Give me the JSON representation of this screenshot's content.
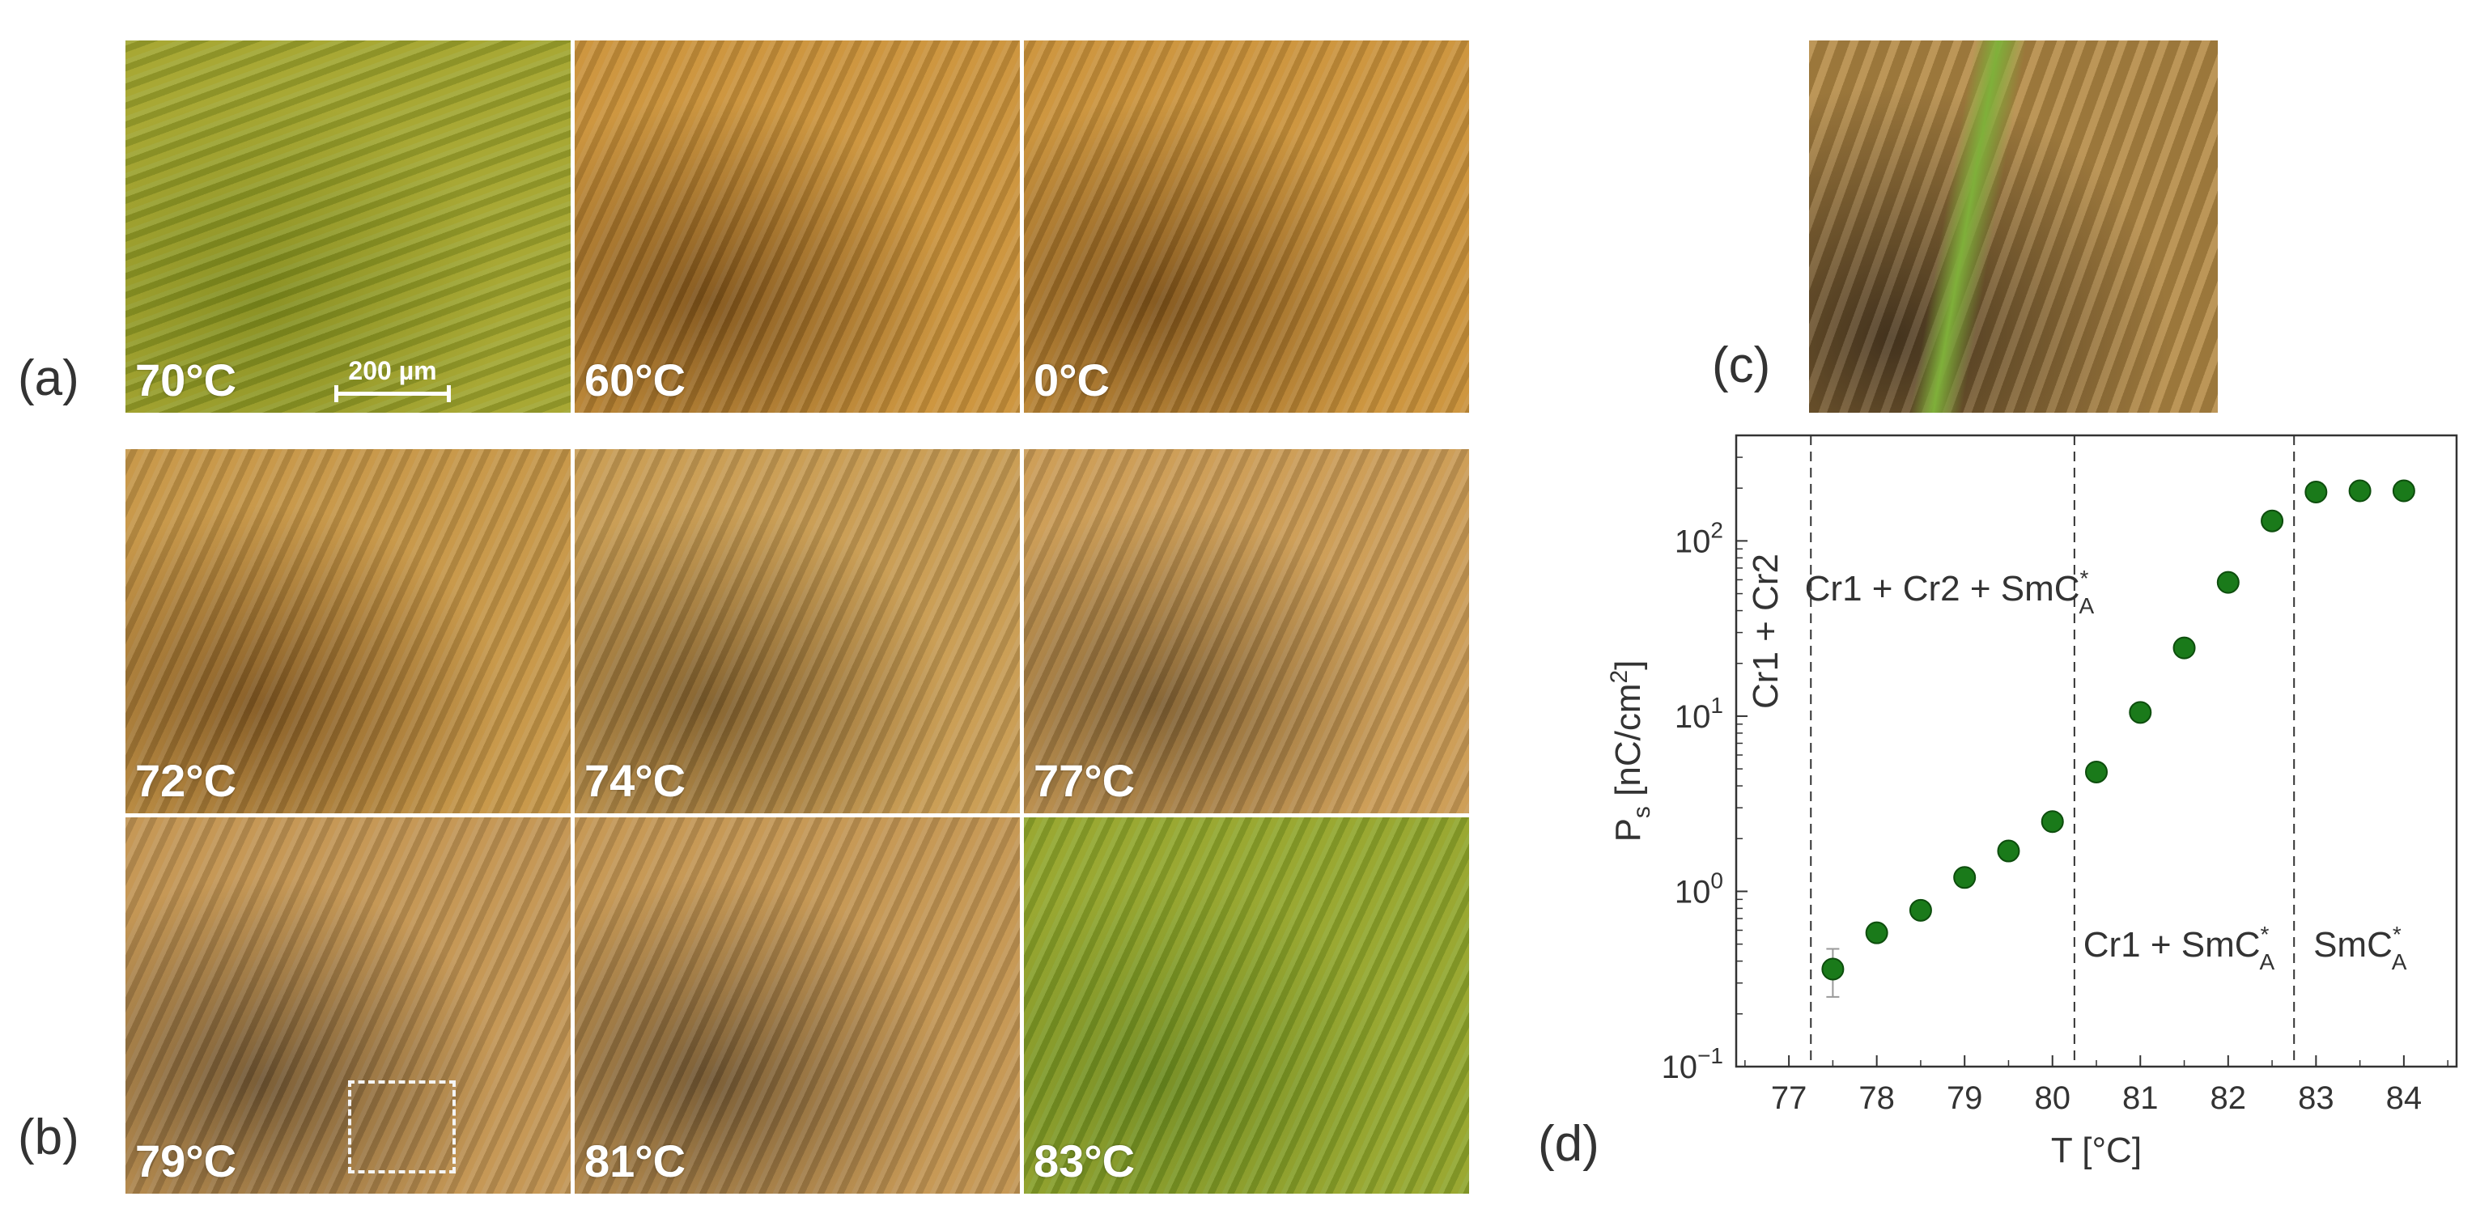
{
  "panel_labels": {
    "a": "(a)",
    "b": "(b)",
    "c": "(c)",
    "d": "(d)"
  },
  "micrographs": [
    {
      "label": "70°C",
      "color": "#9ea42c",
      "tone": "#7f8c1c"
    },
    {
      "label": "60°C",
      "color": "#c8913a",
      "tone": "#7a4f18"
    },
    {
      "label": "0°C",
      "color": "#c8913a",
      "tone": "#7a4f18"
    },
    {
      "label": "72°C",
      "color": "#c39446",
      "tone": "#7c5420"
    },
    {
      "label": "74°C",
      "color": "#c59a52",
      "tone": "#7a5a2a"
    },
    {
      "label": "77°C",
      "color": "#c89a55",
      "tone": "#7b5c30"
    },
    {
      "label": "79°C",
      "color": "#c09352",
      "tone": "#6c5230"
    },
    {
      "label": "81°C",
      "color": "#c19452",
      "tone": "#6d5330"
    },
    {
      "label": "83°C",
      "color": "#8fa52a",
      "tone": "#6a8a1e"
    }
  ],
  "scale_bar": "200 µm",
  "zoom_image": {
    "color": "#b48a45",
    "tone": "#4d3a22",
    "accent": "#7fb03a"
  },
  "chart_data": {
    "type": "scatter",
    "xlabel": "T [°C]",
    "ylabel": "P",
    "ylabel_sub": "s",
    "ylabel_rest": " [nC/cm",
    "ylabel_sup": "2",
    "ylabel_end": "]",
    "xlim": [
      76.4,
      84.6
    ],
    "ylim": [
      0.1,
      400
    ],
    "yscale": "log",
    "xticks": [
      "77",
      "78",
      "79",
      "80",
      "81",
      "82",
      "83",
      "84"
    ],
    "yticks": [
      {
        "base": "10",
        "exp": "−1",
        "value": 0.1
      },
      {
        "base": "10",
        "exp": "0",
        "value": 1
      },
      {
        "base": "10",
        "exp": "1",
        "value": 10
      },
      {
        "base": "10",
        "exp": "2",
        "value": 100
      }
    ],
    "marker_color": "#1a7a1a",
    "points": [
      {
        "x": 77.5,
        "y": 0.36,
        "err_low": 0.25,
        "err_high": 0.47
      },
      {
        "x": 78.0,
        "y": 0.58
      },
      {
        "x": 78.5,
        "y": 0.78
      },
      {
        "x": 79.0,
        "y": 1.2
      },
      {
        "x": 79.5,
        "y": 1.7
      },
      {
        "x": 80.0,
        "y": 2.5
      },
      {
        "x": 80.5,
        "y": 4.8
      },
      {
        "x": 81.0,
        "y": 10.5
      },
      {
        "x": 81.5,
        "y": 24.5
      },
      {
        "x": 82.0,
        "y": 58
      },
      {
        "x": 82.5,
        "y": 130
      },
      {
        "x": 83.0,
        "y": 190
      },
      {
        "x": 83.5,
        "y": 193
      },
      {
        "x": 84.0,
        "y": 193
      }
    ],
    "phase_lines": [
      77.25,
      80.25,
      82.75
    ],
    "annotations": {
      "cr1_cr2": "Cr1 + Cr2",
      "cr1_cr2_sm": "Cr1 + Cr2 + SmC",
      "cr1_sm": "Cr1 + SmC",
      "sm": "SmC",
      "sup": "*",
      "sub": "A"
    }
  }
}
